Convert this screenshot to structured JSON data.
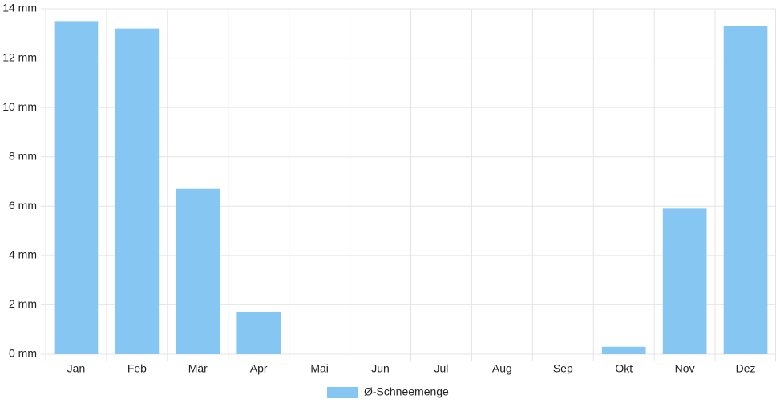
{
  "chart_data": {
    "type": "bar",
    "categories": [
      "Jan",
      "Feb",
      "Mär",
      "Apr",
      "Mai",
      "Jun",
      "Jul",
      "Aug",
      "Sep",
      "Okt",
      "Nov",
      "Dez"
    ],
    "series": [
      {
        "name": "Ø-Schneemenge",
        "color": "#85c6f2",
        "values": [
          13.5,
          13.2,
          6.7,
          1.7,
          0,
          0,
          0,
          0,
          0,
          0.3,
          5.9,
          13.3
        ]
      }
    ],
    "ylim": [
      0,
      14
    ],
    "yticks": [
      {
        "value": 0,
        "label": "0 mm"
      },
      {
        "value": 2,
        "label": "2 mm"
      },
      {
        "value": 4,
        "label": "4 mm"
      },
      {
        "value": 6,
        "label": "6 mm"
      },
      {
        "value": 8,
        "label": "8 mm"
      },
      {
        "value": 10,
        "label": "10 mm"
      },
      {
        "value": 12,
        "label": "12 mm"
      },
      {
        "value": 14,
        "label": "14 mm"
      }
    ],
    "grid": true,
    "legend": "bottom"
  }
}
